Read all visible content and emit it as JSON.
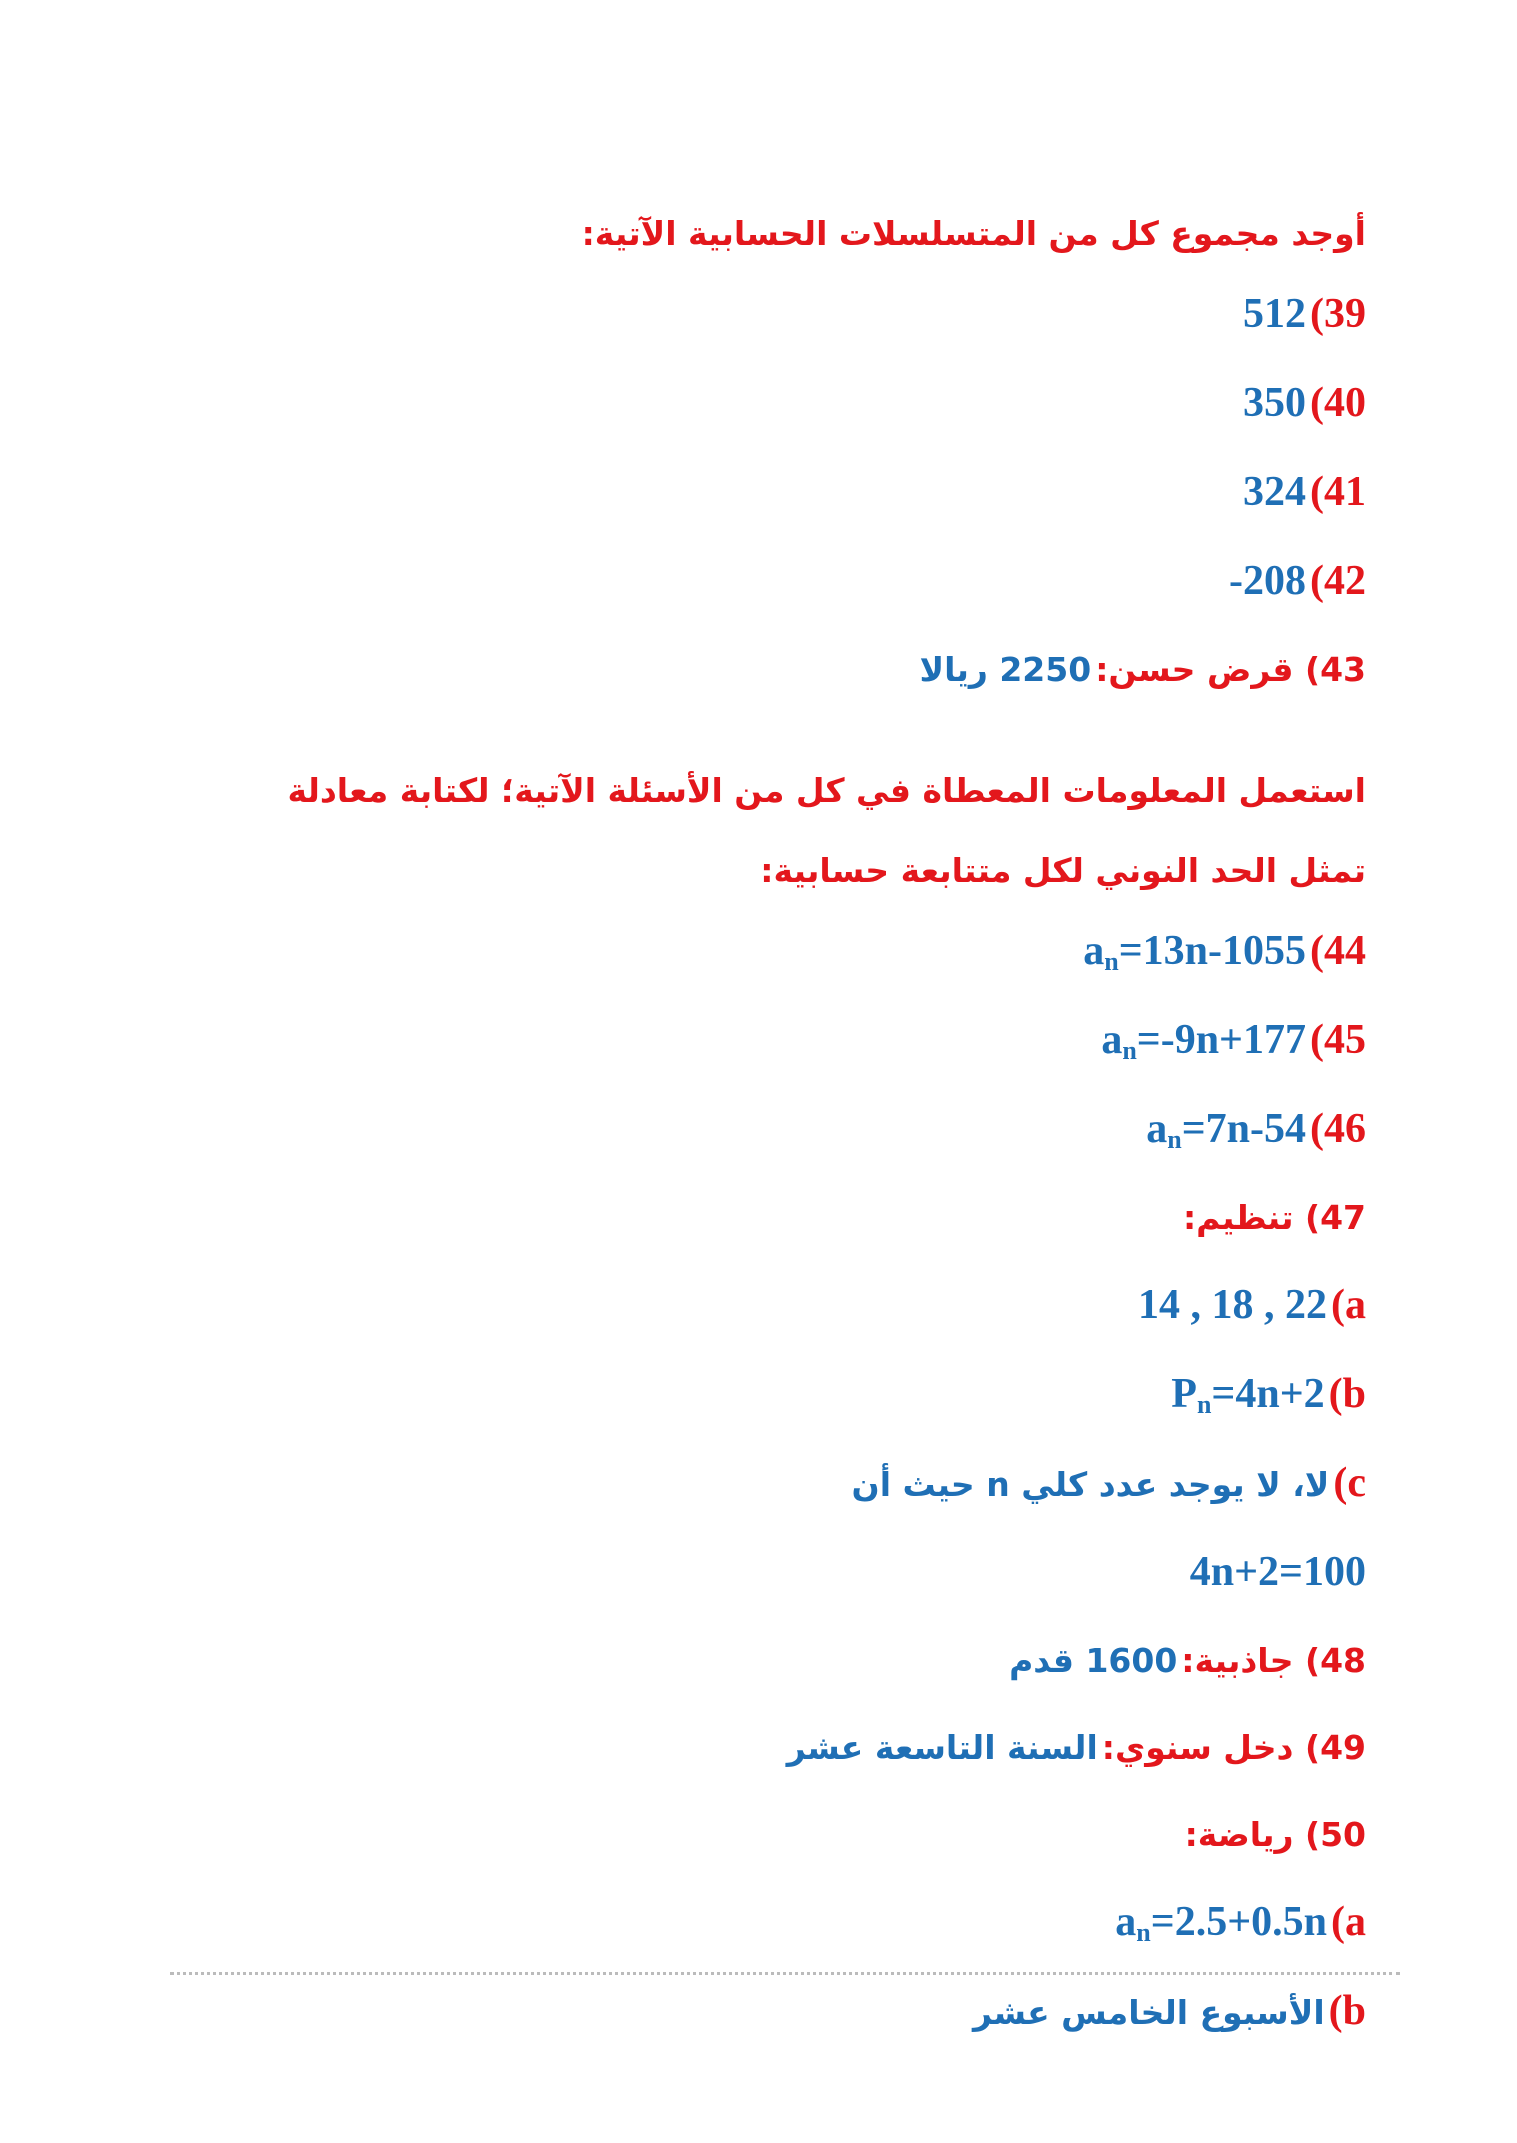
{
  "blocks": [
    {
      "heading": "أوجد مجموع كل من المتسلسلات الحسابية الآتية:"
    },
    {
      "num": "39)",
      "answer": "512"
    },
    {
      "num": "40)",
      "answer": "350"
    },
    {
      "num": "41)",
      "answer": "324"
    },
    {
      "num": "42)",
      "answer": "-208"
    },
    {
      "num": "43) قرض حسن:",
      "answer_ar": "2250 ريالا"
    },
    {
      "heading": "استعمل المعلومات المعطاة في كل من الأسئلة الآتية؛ لكتابة معادلة تمثل الحد النوني لكل متتابعة حسابية:"
    },
    {
      "num": "44)",
      "answer": {
        "base": "a",
        "sub": "n",
        "rest": "=13n-1055"
      }
    },
    {
      "num": "45)",
      "answer": {
        "base": "a",
        "sub": "n",
        "rest": "=-9n+177"
      }
    },
    {
      "num": "46)",
      "answer": {
        "base": "a",
        "sub": "n",
        "rest": "=7n-54"
      }
    },
    {
      "num": "47) تنظيم:"
    },
    {
      "num": "a)",
      "answer": "14 , 18 , 22"
    },
    {
      "num": "b)",
      "answer": {
        "base": "P",
        "sub": "n",
        "rest": "=4n+2"
      }
    },
    {
      "num": "c)",
      "answer_ar": "لا، لا يوجد عدد كلي n حيث أن"
    },
    {
      "answer": "4n+2=100"
    },
    {
      "num": "48) جاذبية:",
      "answer_ar": "1600 قدم"
    },
    {
      "num": "49) دخل سنوي:",
      "answer_ar": "السنة التاسعة عشر"
    },
    {
      "num": "50) رياضة:"
    },
    {
      "num": "a)",
      "answer": {
        "base": "a",
        "sub": "n",
        "rest": "=2.5+0.5n"
      }
    },
    {
      "num": "b)",
      "answer_ar": "الأسبوع الخامس عشر"
    }
  ]
}
